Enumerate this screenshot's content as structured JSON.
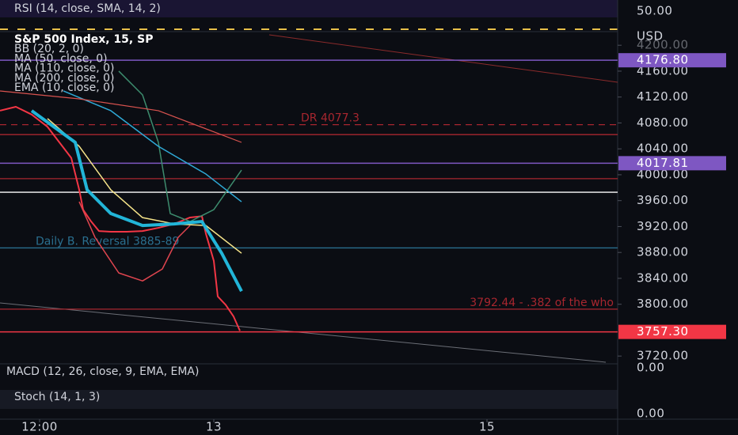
{
  "rsi": {
    "legend": "RSI (14, close, SMA, 14, 2)",
    "level": "50.00"
  },
  "macd": {
    "legend": "MACD (12, 26, close, 9, EMA, EMA)",
    "level": "0.00"
  },
  "stoch": {
    "legend": "Stoch (14, 1, 3)",
    "level": "0.00"
  },
  "chart_data": {
    "type": "line",
    "title": "S&P 500 Index, 15, SP",
    "currency": "USD",
    "ylim": [
      3708,
      4221
    ],
    "yticks": [
      {
        "value": 4200,
        "label": "4200.00"
      },
      {
        "value": 4160,
        "label": "4160.00"
      },
      {
        "value": 4120,
        "label": "4120.00"
      },
      {
        "value": 4080,
        "label": "4080.00"
      },
      {
        "value": 4040,
        "label": "4040.00"
      },
      {
        "value": 4000,
        "label": "4000.00"
      },
      {
        "value": 3960,
        "label": "3960.00"
      },
      {
        "value": 3920,
        "label": "3920.00"
      },
      {
        "value": 3880,
        "label": "3880.00"
      },
      {
        "value": 3840,
        "label": "3840.00"
      },
      {
        "value": 3800,
        "label": "3800.00"
      },
      {
        "value": 3720,
        "label": "3720.00"
      }
    ],
    "xlim": [
      0,
      156
    ],
    "xticks": [
      {
        "value": 10,
        "label": "12:00"
      },
      {
        "value": 54,
        "label": "13"
      },
      {
        "value": 123,
        "label": "15"
      }
    ],
    "series": [
      {
        "name": "S&P 500 Index, 15, SP",
        "color": "#f23645",
        "width": 2,
        "x": [
          0,
          4,
          8,
          12,
          15,
          18,
          20,
          21,
          23,
          25,
          28,
          32,
          36,
          40,
          44,
          48,
          51,
          52,
          54,
          55,
          57,
          59,
          60.6
        ],
        "values": [
          4099,
          4105,
          4093,
          4074,
          4050,
          4026,
          3977,
          3946,
          3928,
          3913,
          3912,
          3912,
          3913,
          3918,
          3924,
          3934,
          3936,
          3909,
          3867,
          3812,
          3799,
          3781,
          3759
        ]
      },
      {
        "name": "BB (20, 2, 0)",
        "color": "#e0454f",
        "width": 1.5,
        "x": [
          20,
          24,
          30,
          36,
          41,
          45,
          48
        ],
        "values": [
          3958.3,
          3903.3,
          3848.3,
          3836,
          3854.4,
          3903.3,
          3921.6
        ]
      },
      {
        "name": "BB (20, 2, 0)",
        "color": "#3d8c6e",
        "width": 1.5,
        "x": [
          30,
          36,
          40,
          43,
          48,
          54,
          61
        ],
        "values": [
          4160,
          4123.3,
          4050,
          3940,
          3927.7,
          3946.1,
          4007.2
        ]
      },
      {
        "name": "MA (50, close, 0)",
        "color": "#f7e58a",
        "width": 1.5,
        "x": [
          12,
          20,
          28,
          36,
          44,
          52,
          61
        ],
        "values": [
          4086.7,
          4043.9,
          3976.7,
          3933.8,
          3924.1,
          3921.6,
          3878.8
        ]
      },
      {
        "name": "MA (110, close, 0)",
        "color": "#2fa9d6",
        "width": 1.5,
        "x": [
          16,
          28,
          40,
          52,
          61
        ],
        "values": [
          4129.4,
          4098.9,
          4043.9,
          4001.1,
          3958.3
        ]
      },
      {
        "name": "MA (200, close, 0)",
        "color": "#d9534f",
        "width": 1.2,
        "x": [
          0,
          20,
          40,
          61
        ],
        "values": [
          4129.4,
          4117.2,
          4098.9,
          4050
        ]
      },
      {
        "name": "EMA (10, close, 0)",
        "color": "#22b5d8",
        "width": 4,
        "x": [
          8,
          19,
          22,
          28,
          36,
          44,
          51,
          56,
          61
        ],
        "values": [
          4098.9,
          4050,
          3976.7,
          3940,
          3921.6,
          3924.1,
          3927.7,
          3878.8,
          3820.1
        ]
      }
    ],
    "price_labels": [
      {
        "value": 4176.8,
        "label": "4176.80",
        "color": "#7e57c2"
      },
      {
        "value": 4017.81,
        "label": "4017.81",
        "color": "#7e57c2"
      },
      {
        "value": 3757.3,
        "label": "3757.30",
        "color": "#f23645"
      }
    ],
    "annotations": [
      {
        "text": "DR 4077.3",
        "value": 4077.3,
        "color": "#a8262f",
        "dashed": true
      },
      {
        "text": "Daily B. Reversal 3885-89",
        "value": 3887,
        "color": "#2a6f8f",
        "dashed": false
      },
      {
        "text": "3792.44 - .382 of the who",
        "value": 3792.44,
        "color": "#a8262f",
        "dashed": false
      }
    ],
    "lines": [
      {
        "value": 3973,
        "color": "#ffffff"
      },
      {
        "value": 4062,
        "color": "#a8262f"
      },
      {
        "value": 3994,
        "color": "#a8262f"
      }
    ]
  }
}
